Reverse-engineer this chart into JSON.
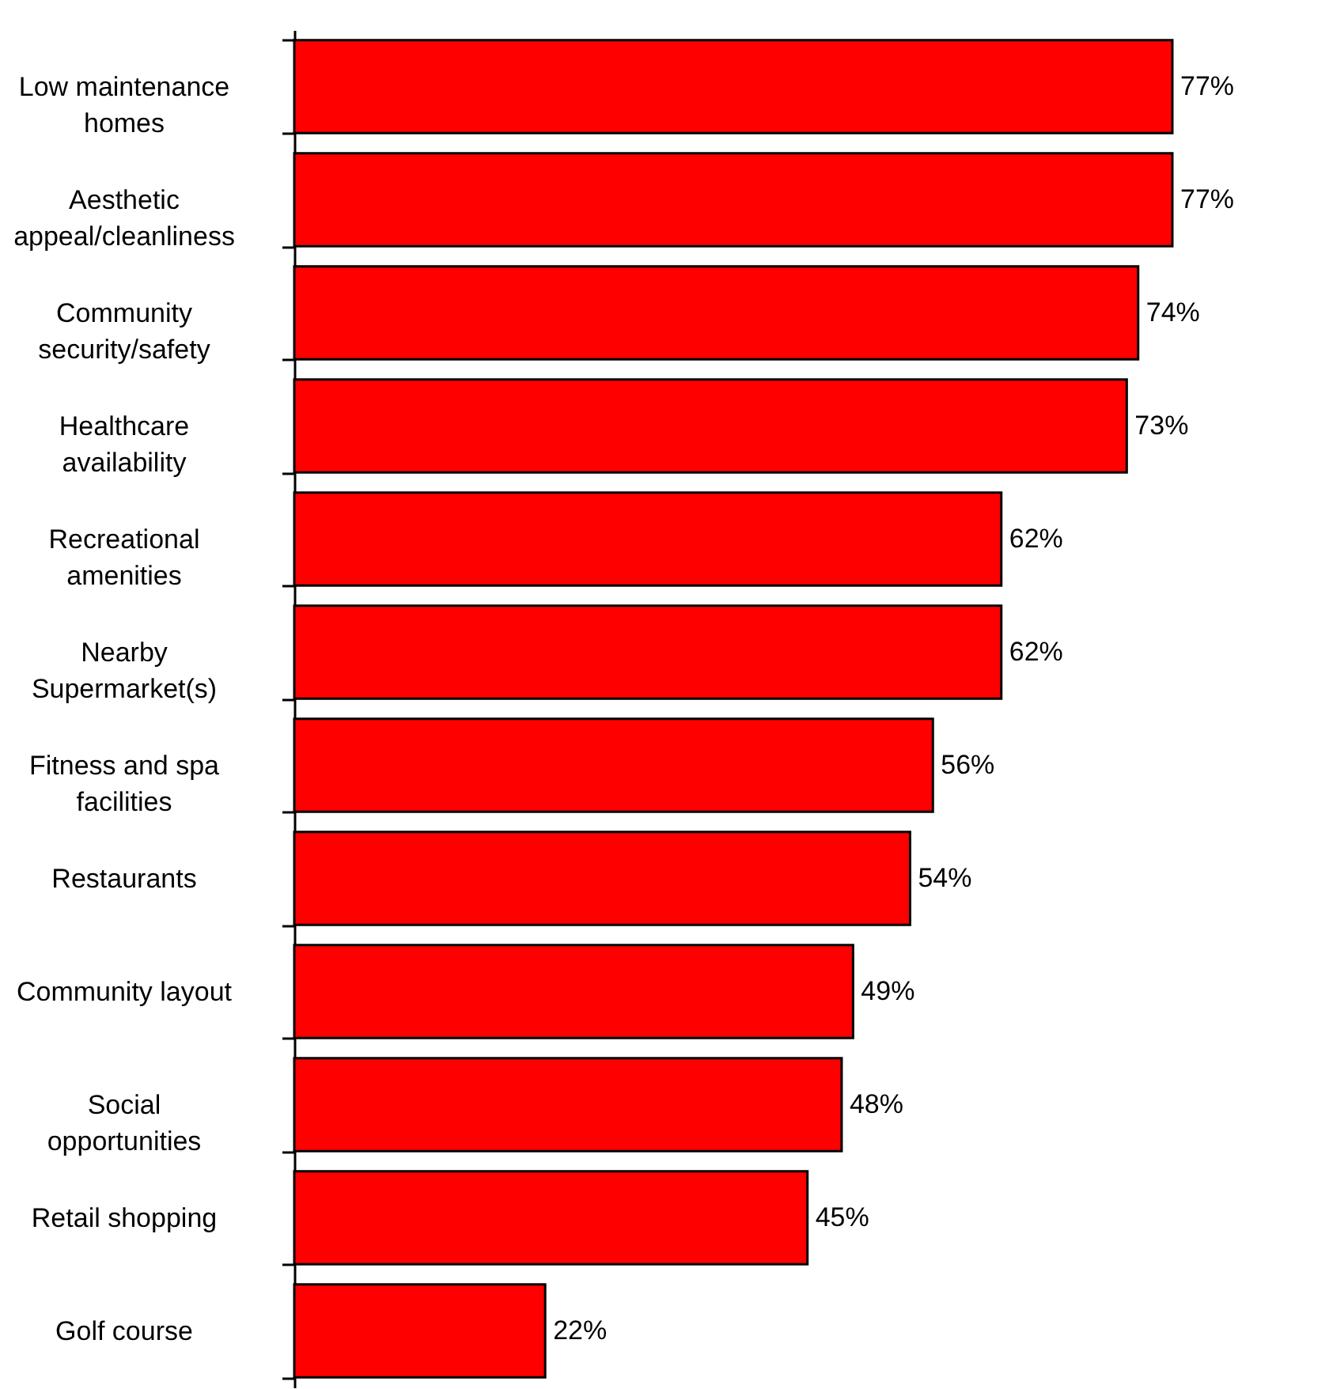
{
  "chart_data": {
    "type": "bar",
    "orientation": "horizontal",
    "categories": [
      "Low maintenance homes",
      "Aesthetic appeal/cleanliness",
      "Community security/safety",
      "Healthcare availability",
      "Recreational amenities",
      "Nearby Supermarket(s)",
      "Fitness and spa facilities",
      "Restaurants",
      "Community layout",
      "Social opportunities",
      "Retail shopping",
      "Golf course"
    ],
    "values": [
      77,
      77,
      74,
      73,
      62,
      62,
      56,
      54,
      49,
      48,
      45,
      22
    ],
    "value_labels": [
      "77%",
      "77%",
      "74%",
      "73%",
      "62%",
      "62%",
      "56%",
      "54%",
      "49%",
      "48%",
      "45%",
      "22%"
    ],
    "color": "#ff0000"
  }
}
